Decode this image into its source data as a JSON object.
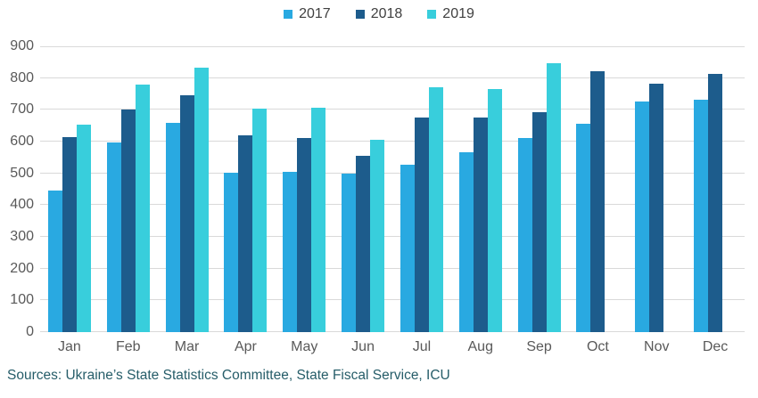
{
  "chart_data": {
    "type": "bar",
    "title": "",
    "xlabel": "",
    "ylabel": "",
    "categories": [
      "Jan",
      "Feb",
      "Mar",
      "Apr",
      "May",
      "Jun",
      "Jul",
      "Aug",
      "Sep",
      "Oct",
      "Nov",
      "Dec"
    ],
    "series": [
      {
        "name": "2017",
        "color": "#29a9e1",
        "values": [
          445,
          598,
          660,
          503,
          505,
          500,
          527,
          565,
          611,
          655,
          727,
          732
        ]
      },
      {
        "name": "2018",
        "color": "#1d5c8c",
        "values": [
          615,
          700,
          745,
          620,
          612,
          555,
          675,
          677,
          692,
          822,
          783,
          812
        ]
      },
      {
        "name": "2019",
        "color": "#38cedc",
        "values": [
          653,
          780,
          832,
          703,
          707,
          606,
          770,
          765,
          846,
          null,
          null,
          null
        ]
      }
    ],
    "ylim": [
      0,
      900
    ],
    "ytick_step": 100,
    "ytick_labels": [
      "0",
      "100",
      "200",
      "300",
      "400",
      "500",
      "600",
      "700",
      "800",
      "900"
    ],
    "grid": true,
    "gridline_color": "#d9d9d9",
    "legend_position": "top-center"
  },
  "footer": {
    "source_text": "Sources: Ukraine’s State Statistics Committee, State Fiscal Service, ICU"
  }
}
